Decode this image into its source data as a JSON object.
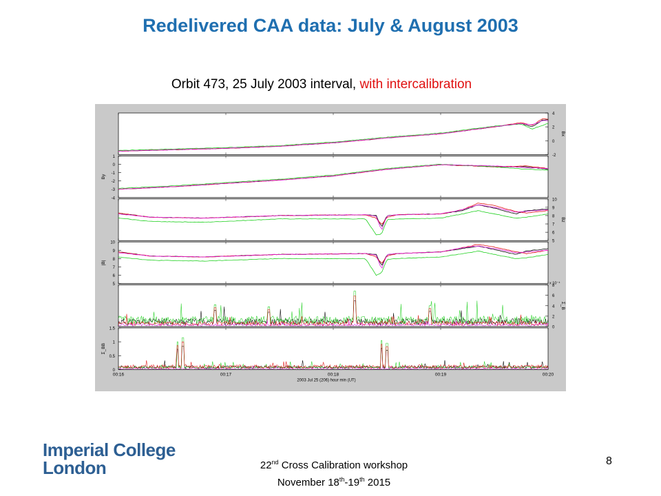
{
  "slide": {
    "title": "Redelivered CAA data: July & August 2003",
    "subtitle_main": "Orbit 473, 25 July 2003 interval, ",
    "subtitle_highlight": "with intercalibration",
    "logo_line1": "Imperial College",
    "logo_line2": "London",
    "footer_line1_pre": "22",
    "footer_line1_sup": "nd",
    "footer_line1_post": " Cross Calibration workshop",
    "footer_line2_pre": "November 18",
    "footer_line2_sup1": "th",
    "footer_line2_mid": "-19",
    "footer_line2_sup2": "th",
    "footer_line2_post": " 2015",
    "page_number": "8"
  },
  "colors": {
    "title": "#1f6fb0",
    "highlight": "#e01010",
    "logo": "#2d5f93",
    "series": [
      "#000000",
      "#e01010",
      "#20d020",
      "#e020e0"
    ]
  },
  "chart_data": {
    "type": "line",
    "xlabel": "2003 Jul 25 (206)  hour min (UT)",
    "x_ticks": [
      "00:16",
      "00:17",
      "00:18",
      "00:19",
      "00:20"
    ],
    "xlim": [
      0,
      4
    ],
    "panels": [
      {
        "ylabel": "Bx",
        "axis_side": "right",
        "ylim": [
          -2,
          4
        ],
        "yticks": [
          -2,
          0,
          2,
          4
        ],
        "series": [
          {
            "x": [
              0,
              0.5,
              1,
              1.5,
              2,
              2.5,
              3,
              3.5,
              3.75,
              3.85,
              3.95,
              4
            ],
            "y": [
              -1.5,
              -1.3,
              -1.1,
              -0.8,
              -0.3,
              0.4,
              1.0,
              2.0,
              2.5,
              2.0,
              3.0,
              3.0
            ]
          },
          {
            "x": [
              0,
              0.5,
              1,
              1.5,
              2,
              2.5,
              3,
              3.5,
              3.75,
              3.85,
              3.95,
              4
            ],
            "y": [
              -1.5,
              -1.3,
              -1.1,
              -0.8,
              -0.3,
              0.4,
              1.0,
              2.0,
              2.6,
              2.2,
              3.2,
              3.1
            ]
          },
          {
            "x": [
              0,
              0.5,
              1,
              1.5,
              2,
              2.5,
              3,
              3.5,
              3.75,
              3.85,
              3.95,
              4
            ],
            "y": [
              -1.4,
              -1.2,
              -1.0,
              -0.7,
              -0.2,
              0.5,
              1.1,
              2.1,
              2.4,
              1.7,
              2.2,
              2.5
            ]
          },
          {
            "x": [
              0,
              0.5,
              1,
              1.5,
              2,
              2.5,
              3,
              3.5,
              3.75,
              3.85,
              3.95,
              4
            ],
            "y": [
              -1.5,
              -1.3,
              -1.1,
              -0.8,
              -0.3,
              0.4,
              1.0,
              2.0,
              2.5,
              2.3,
              2.9,
              2.9
            ]
          }
        ]
      },
      {
        "ylabel": "By",
        "axis_side": "left",
        "ylim": [
          -4,
          1
        ],
        "yticks": [
          -4,
          -3,
          -2,
          -1,
          0,
          1
        ],
        "series": [
          {
            "x": [
              0,
              0.5,
              1,
              1.5,
              2,
              2.5,
              3,
              3.5,
              3.8,
              4
            ],
            "y": [
              -3.0,
              -2.7,
              -2.3,
              -1.9,
              -1.4,
              -0.6,
              -0.05,
              -0.3,
              -0.3,
              -0.6
            ]
          },
          {
            "x": [
              0,
              0.5,
              1,
              1.5,
              2,
              2.5,
              3,
              3.5,
              3.8,
              4
            ],
            "y": [
              -3.0,
              -2.7,
              -2.3,
              -1.9,
              -1.4,
              -0.6,
              -0.05,
              -0.3,
              -0.2,
              -0.5
            ]
          },
          {
            "x": [
              0,
              0.5,
              1,
              1.5,
              2,
              2.5,
              3,
              3.5,
              3.8,
              4
            ],
            "y": [
              -2.9,
              -2.6,
              -2.2,
              -1.8,
              -1.3,
              -0.5,
              0.0,
              -0.3,
              -0.6,
              -0.7
            ]
          },
          {
            "x": [
              0,
              0.5,
              1,
              1.5,
              2,
              2.5,
              3,
              3.5,
              3.8,
              4
            ],
            "y": [
              -3.0,
              -2.7,
              -2.3,
              -1.9,
              -1.4,
              -0.6,
              -0.05,
              -0.2,
              -0.4,
              -0.5
            ]
          }
        ]
      },
      {
        "ylabel": "Bz",
        "axis_side": "right",
        "ylim": [
          5,
          10
        ],
        "yticks": [
          5,
          6,
          7,
          8,
          9,
          10
        ],
        "series": [
          {
            "x": [
              0,
              0.3,
              0.8,
              1.5,
              2.3,
              2.4,
              2.45,
              2.5,
              2.6,
              3.0,
              3.2,
              3.35,
              3.5,
              3.7,
              3.8,
              4
            ],
            "y": [
              8.3,
              7.8,
              7.7,
              8.0,
              8.1,
              8.0,
              6.6,
              8.0,
              8.1,
              8.2,
              8.6,
              9.3,
              8.9,
              8.2,
              8.6,
              8.8
            ]
          },
          {
            "x": [
              0,
              0.3,
              0.8,
              1.5,
              2.3,
              2.4,
              2.45,
              2.5,
              2.6,
              3.0,
              3.2,
              3.35,
              3.5,
              3.7,
              3.8,
              4
            ],
            "y": [
              8.3,
              7.8,
              7.7,
              8.0,
              8.1,
              7.7,
              6.9,
              7.8,
              8.1,
              8.2,
              8.7,
              9.5,
              9.2,
              8.5,
              8.3,
              8.6
            ]
          },
          {
            "x": [
              0,
              0.3,
              0.8,
              1.5,
              2.3,
              2.4,
              2.45,
              2.5,
              2.6,
              3.0,
              3.2,
              3.35,
              3.5,
              3.7,
              3.8,
              4
            ],
            "y": [
              7.7,
              7.3,
              7.2,
              7.6,
              7.6,
              5.7,
              5.8,
              7.5,
              7.6,
              7.7,
              8.2,
              8.6,
              8.2,
              7.7,
              7.8,
              8.2
            ]
          },
          {
            "x": [
              0,
              0.3,
              0.8,
              1.5,
              2.3,
              2.4,
              2.45,
              2.5,
              2.6,
              3.0,
              3.2,
              3.35,
              3.5,
              3.7,
              3.8,
              4
            ],
            "y": [
              8.2,
              7.8,
              7.7,
              8.0,
              8.1,
              7.9,
              6.2,
              8.0,
              8.1,
              8.2,
              8.7,
              9.3,
              9.0,
              8.4,
              8.5,
              8.7
            ]
          }
        ]
      },
      {
        "ylabel": "|B|",
        "axis_side": "left",
        "ylim": [
          5,
          10
        ],
        "yticks": [
          5,
          6,
          7,
          8,
          9,
          10
        ],
        "series": [
          {
            "x": [
              0,
              0.3,
              0.8,
              1.5,
              2.3,
              2.4,
              2.45,
              2.5,
              2.6,
              3.0,
              3.2,
              3.35,
              3.5,
              3.7,
              3.8,
              4
            ],
            "y": [
              8.8,
              8.3,
              8.2,
              8.5,
              8.6,
              8.5,
              7.1,
              8.5,
              8.6,
              8.8,
              9.2,
              9.5,
              9.1,
              8.5,
              8.9,
              9.2
            ]
          },
          {
            "x": [
              0,
              0.3,
              0.8,
              1.5,
              2.3,
              2.4,
              2.45,
              2.5,
              2.6,
              3.0,
              3.2,
              3.35,
              3.5,
              3.7,
              3.8,
              4
            ],
            "y": [
              8.8,
              8.3,
              8.2,
              8.5,
              8.6,
              8.2,
              7.4,
              8.3,
              8.6,
              8.8,
              9.3,
              9.7,
              9.4,
              8.8,
              8.6,
              9.0
            ]
          },
          {
            "x": [
              0,
              0.3,
              0.8,
              1.5,
              2.3,
              2.4,
              2.45,
              2.5,
              2.6,
              3.0,
              3.2,
              3.35,
              3.5,
              3.7,
              3.8,
              4
            ],
            "y": [
              8.2,
              7.8,
              7.7,
              8.0,
              8.0,
              6.0,
              6.3,
              7.9,
              8.0,
              8.2,
              8.6,
              8.9,
              8.5,
              8.0,
              8.1,
              8.5
            ]
          },
          {
            "x": [
              0,
              0.3,
              0.8,
              1.5,
              2.3,
              2.4,
              2.45,
              2.5,
              2.6,
              3.0,
              3.2,
              3.35,
              3.5,
              3.7,
              3.8,
              4
            ],
            "y": [
              8.7,
              8.3,
              8.2,
              8.5,
              8.6,
              8.4,
              6.7,
              8.5,
              8.6,
              8.8,
              9.3,
              9.5,
              9.2,
              8.7,
              8.8,
              9.0
            ]
          }
        ]
      },
      {
        "ylabel": "Σ_B",
        "axis_side": "right",
        "scale_label": "x 10⁻⁴",
        "ylim": [
          0,
          8
        ],
        "yticks": [
          0,
          2,
          4,
          6,
          8
        ],
        "noise": {
          "base": [
            0.9,
            0.6,
            1.2,
            0.3
          ],
          "seeds": [
            11,
            23,
            37,
            51
          ],
          "spikes": [
            [
              0.9,
              4.2
            ],
            [
              1.4,
              3.8
            ],
            [
              2.2,
              6.8
            ],
            [
              2.9,
              4.0
            ]
          ]
        }
      },
      {
        "ylabel": "Σ_BB",
        "axis_side": "left",
        "ylim": [
          0,
          1.5
        ],
        "yticks": [
          0,
          0.5,
          1,
          1.5
        ],
        "noise": {
          "base": [
            0.08,
            0.1,
            0.07,
            0.03
          ],
          "seeds": [
            71,
            83,
            97,
            113
          ],
          "spikes": [
            [
              0.55,
              1.0
            ],
            [
              0.6,
              1.15
            ],
            [
              2.45,
              1.05
            ],
            [
              2.5,
              0.95
            ]
          ]
        }
      }
    ]
  }
}
